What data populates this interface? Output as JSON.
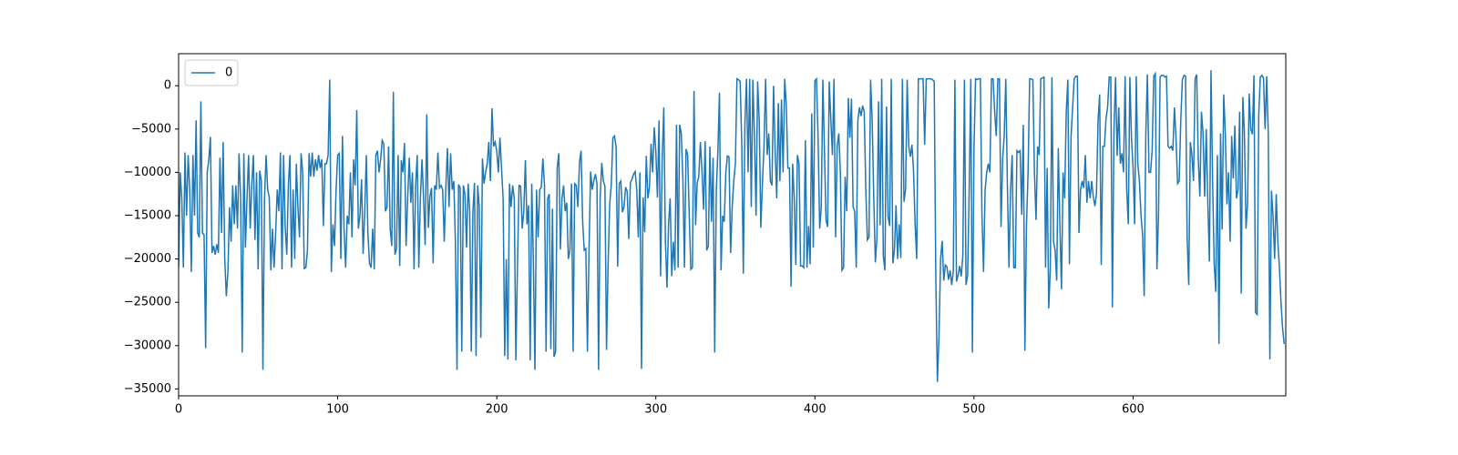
{
  "chart_data": {
    "type": "line",
    "legend": "upper left",
    "xlim": [
      0,
      696
    ],
    "ylim": [
      -35800,
      3700
    ],
    "xticks": [
      0,
      100,
      200,
      300,
      400,
      500,
      600
    ],
    "yticks": [
      0,
      {
        "value": -5000,
        "label": "−5000"
      },
      {
        "value": -10000,
        "label": "−10000"
      },
      {
        "value": -15000,
        "label": "−15000"
      },
      {
        "value": -20000,
        "label": "−20000"
      },
      {
        "value": -25000,
        "label": "−25000"
      },
      {
        "value": -30000,
        "label": "−30000"
      },
      {
        "value": -35000,
        "label": "−35000"
      }
    ],
    "series": [
      {
        "name": "0",
        "color": "#1f77b4",
        "values": [
          -21000,
          -10000,
          -13000,
          -21000,
          -7700,
          -15000,
          -8000,
          -12000,
          -21500,
          -8000,
          -15000,
          -4000,
          -17000,
          -17500,
          -1800,
          -17000,
          -17200,
          -30300,
          -10000,
          -8500,
          -5900,
          -19300,
          -18500,
          -19500,
          -18300,
          -19300,
          -8300,
          -17000,
          -6500,
          -20000,
          -24300,
          -21500,
          -14000,
          -18000,
          -11500,
          -16000,
          -11500,
          -16500,
          -7800,
          -13000,
          -30800,
          -7800,
          -18700,
          -13000,
          -8000,
          -16500,
          -11500,
          -8000,
          -17800,
          -10000,
          -21200,
          -9800,
          -11000,
          -32800,
          -13000,
          -8000,
          -12000,
          -12900,
          -21300,
          -16500,
          -21000,
          -17000,
          -12000,
          -14500,
          -7700,
          -21200,
          -8000,
          -16300,
          -19500,
          -11500,
          -8000,
          -21000,
          -12000,
          -20000,
          -9000,
          -14000,
          -17500,
          -7800,
          -10000,
          -21100,
          -21000,
          -19000,
          -7800,
          -10500,
          -7700,
          -10500,
          -8500,
          -9800,
          -8000,
          -9500,
          -8500,
          -16200,
          -9000,
          -9000,
          -8000,
          700,
          -21500,
          -16000,
          -18500,
          -12000,
          -8000,
          -7800,
          -20000,
          -5800,
          -16500,
          -21000,
          -15000,
          -16000,
          -10000,
          -17500,
          -8500,
          -11500,
          -2800,
          -16500,
          -15000,
          -10800,
          -19400,
          -14500,
          -8000,
          -17000,
          -20500,
          -21000,
          -16500,
          -21200,
          -8000,
          -7500,
          -10000,
          -8500,
          -6300,
          -6700,
          -14500,
          -14000,
          -7000,
          -16500,
          -18500,
          -700,
          -19500,
          -18800,
          -8000,
          -20800,
          -8600,
          -10000,
          -6600,
          -18500,
          -13000,
          -8300,
          -13500,
          -10000,
          -21200,
          -11500,
          -8000,
          -21000,
          -13000,
          -8500,
          -13000,
          -18400,
          -3300,
          -16400,
          -12800,
          -11800,
          -20500,
          -11500,
          -12000,
          -7700,
          -11800,
          -11500,
          -12000,
          -18000,
          -11700,
          -7200,
          -14000,
          -7800,
          -12000,
          -11000,
          -18000,
          -32800,
          -11400,
          -11800,
          -30700,
          -11500,
          -12500,
          -18700,
          -11300,
          -14500,
          -30700,
          -14600,
          -11200,
          -31200,
          -11500,
          -14000,
          -29100,
          -8400,
          -11300,
          -10000,
          -9000,
          -6500,
          -11000,
          -2600,
          -7000,
          -6500,
          -7500,
          -10000,
          -6000,
          -9500,
          -13000,
          -31200,
          -20000,
          -31600,
          -11300,
          -14000,
          -11500,
          -13000,
          -31700,
          -21000,
          -11500,
          -11600,
          -16500,
          -14500,
          -8600,
          -16000,
          -13800,
          -31700,
          -11300,
          -20000,
          -32800,
          -12000,
          -17500,
          -12000,
          -11700,
          -8400,
          -11500,
          -30700,
          -13000,
          -12500,
          -30400,
          -14200,
          -31300,
          -30700,
          -9500,
          -7800,
          -18900,
          -13000,
          -11500,
          -14500,
          -13500,
          -20000,
          -19000,
          -11300,
          -30700,
          -11300,
          -11500,
          -14000,
          -8900,
          -7500,
          -15700,
          -19000,
          -18800,
          -30700,
          -19000,
          -9900,
          -12000,
          -11000,
          -10200,
          -11300,
          -32800,
          -13000,
          -8900,
          -11000,
          -11600,
          -30500,
          -20500,
          -13700,
          -11400,
          -6000,
          -5800,
          -7000,
          -20900,
          -11300,
          -11000,
          -14600,
          -14000,
          -11700,
          -12200,
          -17700,
          -11200,
          -10800,
          -10200,
          -9900,
          -12000,
          -17500,
          -10000,
          -32700,
          -12900,
          -16900,
          -8100,
          -13000,
          -11700,
          -6700,
          -10000,
          -4800,
          -7600,
          -12900,
          -4000,
          -22000,
          -8500,
          -2500,
          -17800,
          -23300,
          -16000,
          -13000,
          -22000,
          -18000,
          -21300,
          -4500,
          -21000,
          -4500,
          -5500,
          -10800,
          -21000,
          -7300,
          -8000,
          -15000,
          -21200,
          -21000,
          -600,
          -16100,
          -11200,
          -10500,
          -6500,
          -9800,
          -14300,
          -6400,
          -19000,
          -18500,
          -7000,
          -15700,
          -8300,
          -30800,
          -12200,
          -7600,
          -800,
          -21300,
          -15000,
          -15700,
          -10000,
          -8100,
          -8200,
          -19300,
          -14000,
          -11000,
          -9000,
          800,
          700,
          500,
          -6500,
          -21700,
          -4400,
          800,
          -10000,
          800,
          -14000,
          700,
          -5800,
          -15000,
          500,
          -4000,
          -16400,
          -11300,
          -7000,
          800,
          -8000,
          -5500,
          -11000,
          -11500,
          0,
          -7500,
          -13000,
          -2000,
          -11000,
          -1600,
          -10000,
          800,
          -2200,
          -9500,
          -9500,
          -23200,
          -9000,
          -13000,
          -20700,
          -8000,
          -9000,
          -20800,
          -20800,
          -21000,
          -6300,
          -21000,
          -16200,
          -20600,
          -3200,
          -18700,
          600,
          800,
          -6000,
          -16500,
          -14000,
          700,
          -7500,
          -15500,
          -16300,
          500,
          -3800,
          -8000,
          800,
          -17500,
          -7000,
          -5500,
          -10000,
          -21300,
          -21000,
          -10500,
          -14500,
          -1400,
          -6000,
          -1500,
          -14000,
          -14500,
          -21000,
          -4000,
          -2500,
          -3500,
          -2300,
          -3000,
          -12000,
          -17800,
          -17500,
          700,
          -4000,
          -13000,
          -20400,
          -17500,
          -1800,
          -16100,
          800,
          -19700,
          -21300,
          -2400,
          -15100,
          -16200,
          800,
          -20500,
          -19000,
          -13800,
          -20000,
          -16000,
          -19900,
          800,
          -13400,
          -12000,
          700,
          -7000,
          -8200,
          -6800,
          -9800,
          -16000,
          -20000,
          800,
          800,
          800,
          800,
          -6800,
          800,
          800,
          800,
          800,
          700,
          500,
          -22000,
          -34200,
          -29000,
          -20000,
          -17900,
          -22500,
          -20700,
          -20900,
          -22400,
          -21300,
          -23000,
          -21400,
          700,
          -22600,
          -21900,
          -20800,
          -22000,
          -19600,
          700,
          -23000,
          -21900,
          -12000,
          800,
          -30800,
          -7200,
          800,
          700,
          800,
          800,
          -14800,
          -21500,
          -12000,
          -10000,
          -9000,
          -10000,
          800,
          800,
          -3000,
          -5800,
          800,
          800,
          -16300,
          -8500,
          -5800,
          800,
          -11500,
          -21000,
          -12000,
          -8000,
          -21000,
          -21000,
          -7500,
          -7700,
          -7500,
          -14900,
          -4500,
          -30600,
          -16100,
          -10000,
          800,
          800,
          700,
          -10000,
          -15500,
          -7000,
          -8000,
          800,
          900,
          1000,
          -21000,
          -9500,
          -25700,
          -21000,
          1000,
          -18000,
          -19000,
          -22500,
          -7200,
          -16000,
          -23500,
          -10000,
          -13000,
          -3000,
          700,
          -20600,
          -6000,
          -2500,
          800,
          1100,
          1100,
          -17000,
          -12000,
          -11000,
          -11800,
          -8000,
          -13500,
          -11000,
          -13000,
          -11000,
          -12800,
          -13900,
          -12500,
          -4000,
          -1000,
          -20700,
          -7000,
          -7000,
          -3800,
          -2500,
          1000,
          1000,
          -25600,
          -5000,
          1000,
          -8100,
          -2500,
          -9000,
          -7800,
          -10000,
          1100,
          -12000,
          -16000,
          1000,
          -6000,
          -9500,
          -16000,
          1100,
          -9000,
          -11000,
          -15000,
          -17200,
          -24300,
          -5700,
          1300,
          -10000,
          -10000,
          -7500,
          1100,
          1400,
          -21200,
          -15000,
          1000,
          1200,
          1200,
          1000,
          1100,
          -7000,
          -7200,
          -7000,
          -7500,
          -2500,
          -6000,
          -11300,
          -11000,
          -4000,
          700,
          1200,
          1100,
          -17500,
          -23000,
          -6500,
          -8000,
          -11000,
          800,
          1300,
          -8500,
          -12800,
          -3000,
          -5500,
          -12800,
          -5000,
          -13500,
          -20300,
          1800,
          -11000,
          -20500,
          -23800,
          -8000,
          -29800,
          -5500,
          -16600,
          -1000,
          -5500,
          -13700,
          -10000,
          -18000,
          -5800,
          -10700,
          -4600,
          -13000,
          -12000,
          -3000,
          -24000,
          -1300,
          -5500,
          -16500,
          -13500,
          -900,
          -5000,
          -5600,
          1200,
          -26200,
          -26400,
          -3400,
          1000,
          1200,
          900,
          -5000,
          1100,
          -5500,
          -31600,
          -12100,
          -15000,
          -20000,
          -12500,
          -18000,
          -21000,
          -25000,
          -28000,
          -29800
        ]
      }
    ]
  }
}
